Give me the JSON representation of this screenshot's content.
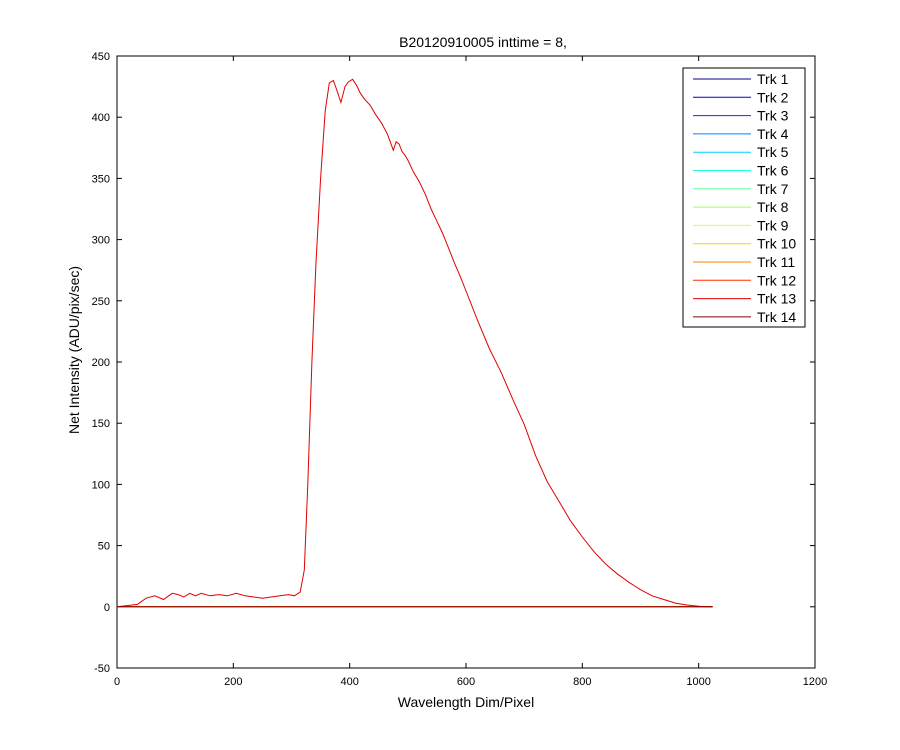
{
  "chart_data": {
    "type": "line",
    "title": "B20120910005 inttime = 8,",
    "xlabel": "Wavelength Dim/Pixel",
    "ylabel": "Net Intensity (ADU/pix/sec)",
    "xlim": [
      0,
      1200
    ],
    "ylim": [
      -50,
      450
    ],
    "xticks": [
      0,
      200,
      400,
      600,
      800,
      1000,
      1200
    ],
    "xtick_labels": [
      "0",
      "200",
      "400",
      "600",
      "800",
      "1000",
      "1200"
    ],
    "yticks": [
      -50,
      0,
      50,
      100,
      150,
      200,
      250,
      300,
      350,
      400,
      450
    ],
    "ytick_labels": [
      "-50",
      "0",
      "50",
      "100",
      "150",
      "200",
      "250",
      "300",
      "350",
      "400",
      "450"
    ],
    "grid": false,
    "legend_position": "top-right",
    "series": [
      {
        "name": "Trk 1",
        "color": "#00008F",
        "x": [
          0,
          1024
        ],
        "y": [
          0,
          0
        ]
      },
      {
        "name": "Trk 2",
        "color": "#0000DF",
        "x": [
          0,
          1024
        ],
        "y": [
          0,
          0
        ]
      },
      {
        "name": "Trk 3",
        "color": "#0030FF",
        "x": [
          0,
          1024
        ],
        "y": [
          0,
          0
        ]
      },
      {
        "name": "Trk 4",
        "color": "#0080FF",
        "x": [
          0,
          1024
        ],
        "y": [
          0,
          0
        ]
      },
      {
        "name": "Trk 5",
        "color": "#00CFFF",
        "x": [
          0,
          1024
        ],
        "y": [
          0,
          0
        ]
      },
      {
        "name": "Trk 6",
        "color": "#20FFDF",
        "x": [
          0,
          1024
        ],
        "y": [
          0,
          0
        ]
      },
      {
        "name": "Trk 7",
        "color": "#60FF9F",
        "x": [
          0,
          1024
        ],
        "y": [
          0,
          0
        ]
      },
      {
        "name": "Trk 8",
        "color": "#9FFF60",
        "x": [
          0,
          1024
        ],
        "y": [
          0,
          0
        ]
      },
      {
        "name": "Trk 9",
        "color": "#DFFF20",
        "x": [
          0,
          1024
        ],
        "y": [
          0,
          0
        ]
      },
      {
        "name": "Trk 10",
        "color": "#FFCF00",
        "x": [
          0,
          1024
        ],
        "y": [
          0,
          0
        ]
      },
      {
        "name": "Trk 11",
        "color": "#FF8000",
        "x": [
          0,
          1024
        ],
        "y": [
          0,
          0
        ]
      },
      {
        "name": "Trk 12",
        "color": "#FF3000",
        "x": [
          0,
          1024
        ],
        "y": [
          0,
          0
        ]
      },
      {
        "name": "Trk 13",
        "color": "#E00000",
        "x": [
          0,
          35,
          50,
          65,
          80,
          95,
          105,
          115,
          125,
          135,
          145,
          160,
          175,
          190,
          205,
          220,
          235,
          250,
          265,
          280,
          295,
          305,
          315,
          322,
          328,
          335,
          342,
          350,
          358,
          365,
          372,
          378,
          385,
          392,
          398,
          405,
          412,
          418,
          425,
          435,
          445,
          455,
          465,
          475,
          480,
          485,
          490,
          495,
          500,
          510,
          520,
          530,
          540,
          550,
          560,
          570,
          580,
          590,
          600,
          620,
          640,
          660,
          680,
          700,
          720,
          740,
          760,
          780,
          800,
          820,
          840,
          860,
          880,
          900,
          920,
          940,
          960,
          980,
          1000,
          1010,
          1024
        ],
        "y": [
          0,
          2,
          7,
          9,
          6,
          11,
          10,
          8,
          11,
          9,
          11,
          9,
          10,
          9,
          11,
          9,
          8,
          7,
          8,
          9,
          10,
          9,
          12,
          30,
          100,
          200,
          280,
          350,
          405,
          428,
          430,
          422,
          412,
          425,
          429,
          431,
          426,
          420,
          415,
          410,
          402,
          395,
          386,
          373,
          380,
          378,
          372,
          369,
          365,
          355,
          347,
          337,
          325,
          315,
          305,
          293,
          281,
          270,
          258,
          234,
          211,
          192,
          170,
          149,
          123,
          102,
          86,
          70,
          57,
          45,
          35,
          27,
          20,
          14,
          9,
          6,
          3,
          1.5,
          0.5,
          0.1,
          0
        ]
      },
      {
        "name": "Trk 14",
        "color": "#800000",
        "x": [
          0,
          1024
        ],
        "y": [
          0,
          0
        ]
      }
    ]
  }
}
